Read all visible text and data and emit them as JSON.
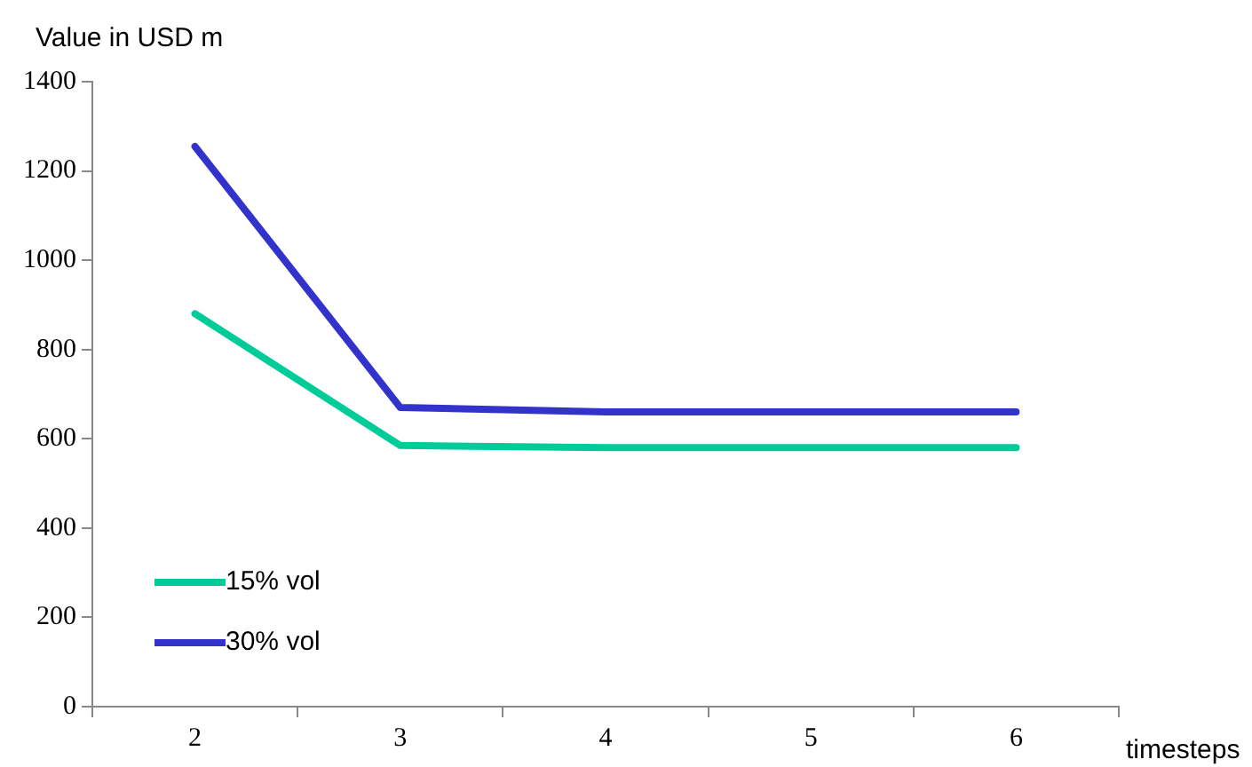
{
  "chart_data": {
    "type": "line",
    "ylabel": "Value in USD m",
    "xlabel": "timesteps",
    "categories": [
      "2",
      "3",
      "4",
      "5",
      "6"
    ],
    "series": [
      {
        "name": "15% vol",
        "color": "#00cc99",
        "values": [
          880,
          585,
          580,
          580,
          580
        ]
      },
      {
        "name": "30% vol",
        "color": "#3333cc",
        "values": [
          1255,
          670,
          660,
          660,
          660
        ]
      }
    ],
    "ylim": [
      0,
      1400
    ],
    "yticks": [
      0,
      200,
      400,
      600,
      800,
      1000,
      1200,
      1400
    ],
    "grid": false,
    "legend": "bottom left",
    "marker": "none",
    "line_style": "solid"
  }
}
